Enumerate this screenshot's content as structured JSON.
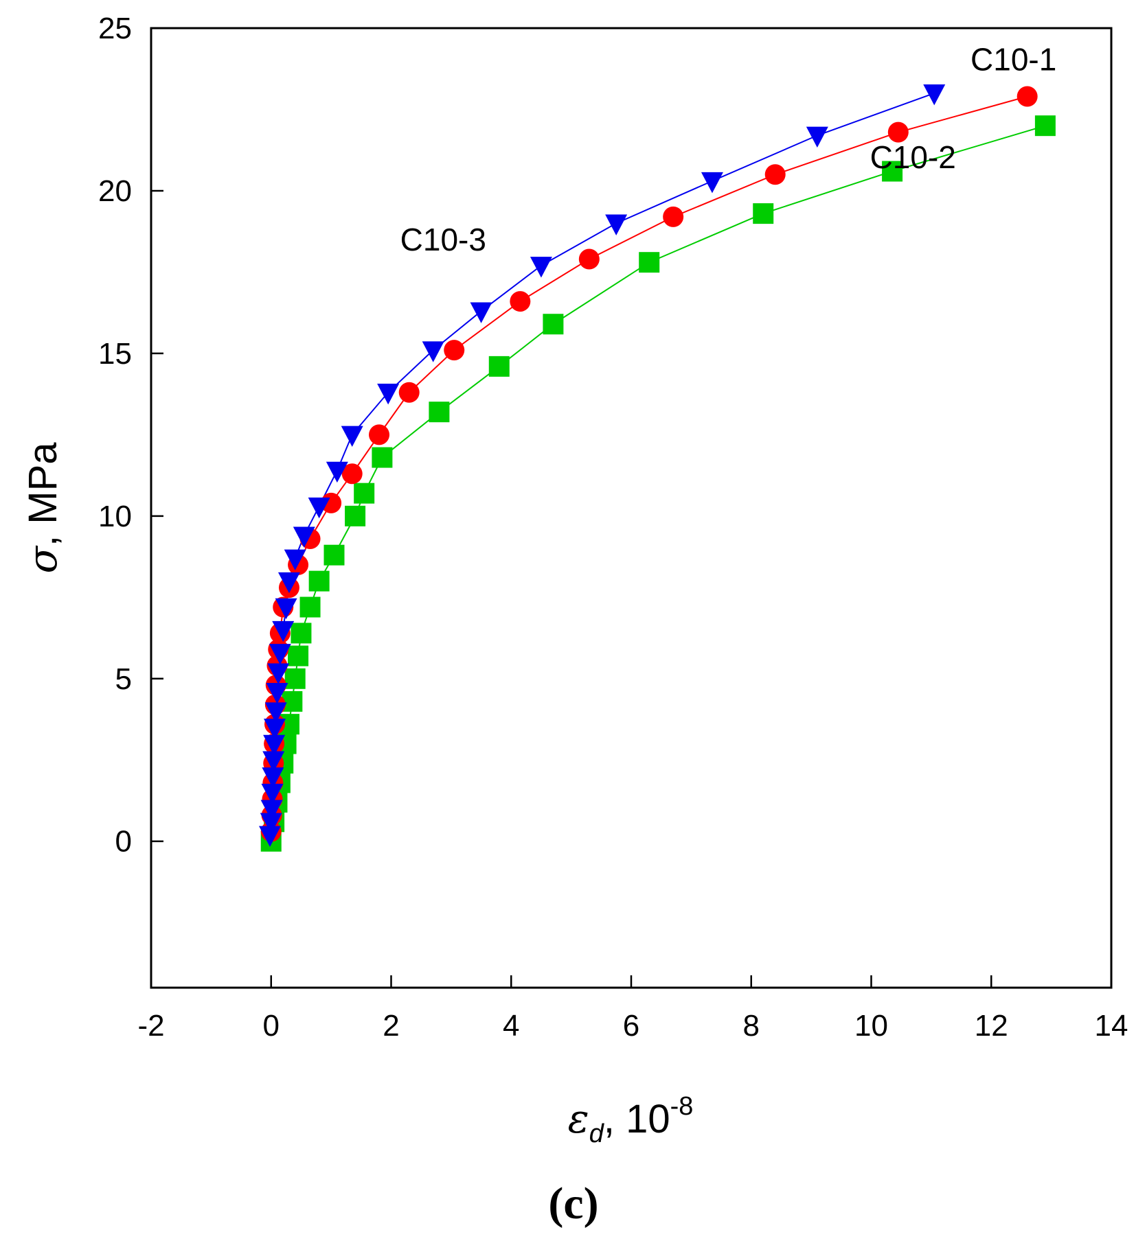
{
  "chart_data": {
    "type": "scatter",
    "title": "",
    "xlabel": "ε_d, 10^-8",
    "xlabel_symbol": "ε",
    "xlabel_subscript": "d",
    "xlabel_text": ", 10",
    "xlabel_exponent": "-8",
    "ylabel": "σ, MPa",
    "ylabel_symbol": "σ",
    "ylabel_text": ", MPa",
    "xlim": [
      -2,
      14
    ],
    "ylim": [
      -4.5,
      25
    ],
    "x_ticks": [
      -2,
      0,
      2,
      4,
      6,
      8,
      10,
      12,
      14
    ],
    "y_ticks": [
      0,
      5,
      10,
      15,
      20,
      25
    ],
    "grid": false,
    "legend": "inline labels",
    "panel_label": "(c)",
    "series": [
      {
        "name": "C10-1",
        "color": "#ff0000",
        "marker": "circle",
        "label_position": "top-right",
        "x": [
          0.0,
          0.01,
          0.02,
          0.03,
          0.04,
          0.05,
          0.06,
          0.07,
          0.08,
          0.1,
          0.12,
          0.15,
          0.2,
          0.3,
          0.45,
          0.65,
          1.0,
          1.35,
          1.8,
          2.3,
          3.05,
          4.15,
          5.3,
          6.7,
          8.4,
          10.45,
          12.6
        ],
        "y": [
          0.3,
          0.8,
          1.3,
          1.8,
          2.4,
          3.0,
          3.6,
          4.2,
          4.8,
          5.4,
          5.9,
          6.4,
          7.2,
          7.8,
          8.5,
          9.3,
          10.4,
          11.3,
          12.5,
          13.8,
          15.1,
          16.6,
          17.9,
          19.2,
          20.5,
          21.8,
          22.9
        ]
      },
      {
        "name": "C10-2",
        "color": "#00cc00",
        "marker": "square",
        "label_position": "right",
        "x": [
          0.0,
          0.05,
          0.1,
          0.15,
          0.2,
          0.25,
          0.3,
          0.35,
          0.4,
          0.45,
          0.5,
          0.65,
          0.8,
          1.05,
          1.4,
          1.55,
          1.85,
          2.8,
          3.8,
          4.7,
          6.3,
          8.2,
          10.35,
          12.9
        ],
        "y": [
          0.0,
          0.6,
          1.2,
          1.8,
          2.4,
          3.0,
          3.6,
          4.3,
          5.0,
          5.7,
          6.4,
          7.2,
          8.0,
          8.8,
          10.0,
          10.7,
          11.8,
          13.2,
          14.6,
          15.9,
          17.8,
          19.3,
          20.6,
          22.0
        ]
      },
      {
        "name": "C10-3",
        "color": "#0000ee",
        "marker": "triangle-down",
        "label_position": "top-left",
        "x": [
          -0.02,
          0.0,
          0.01,
          0.02,
          0.03,
          0.04,
          0.05,
          0.06,
          0.08,
          0.1,
          0.12,
          0.15,
          0.2,
          0.25,
          0.3,
          0.4,
          0.55,
          0.8,
          1.1,
          1.35,
          1.95,
          2.7,
          3.5,
          4.5,
          5.75,
          7.35,
          9.1,
          11.05
        ],
        "y": [
          0.2,
          0.6,
          1.0,
          1.5,
          2.0,
          2.5,
          3.0,
          3.5,
          4.0,
          4.6,
          5.2,
          5.8,
          6.5,
          7.2,
          8.0,
          8.7,
          9.4,
          10.3,
          11.4,
          12.5,
          13.8,
          15.1,
          16.3,
          17.7,
          19.0,
          20.3,
          21.7,
          23.0
        ]
      }
    ]
  }
}
